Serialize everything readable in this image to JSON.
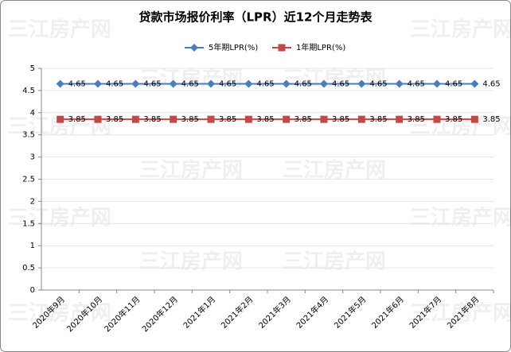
{
  "chart_data": {
    "type": "line",
    "title": "贷款市场报价利率（LPR）近12个月走势表",
    "watermark": "三江房产网",
    "categories": [
      "2020年9月",
      "2020年10月",
      "2020年11月",
      "2020年12月",
      "2021年1月",
      "2021年2月",
      "2021年3月",
      "2021年4月",
      "2021年5月",
      "2021年6月",
      "2021年7月",
      "2021年8月"
    ],
    "series": [
      {
        "name": "5年期LPR(%)",
        "color": "#4a7ebb",
        "marker": "diamond",
        "values": [
          4.65,
          4.65,
          4.65,
          4.65,
          4.65,
          4.65,
          4.65,
          4.65,
          4.65,
          4.65,
          4.65,
          4.65
        ]
      },
      {
        "name": "1年期LPR(%)",
        "color": "#be4b48",
        "marker": "square",
        "values": [
          3.85,
          3.85,
          3.85,
          3.85,
          3.85,
          3.85,
          3.85,
          3.85,
          3.85,
          3.85,
          3.85,
          3.85
        ]
      }
    ],
    "ylim": [
      0,
      5
    ],
    "yticks": [
      0,
      0.5,
      1,
      1.5,
      2,
      2.5,
      3,
      3.5,
      4,
      4.5,
      5
    ],
    "grid": true,
    "legend": "top"
  }
}
